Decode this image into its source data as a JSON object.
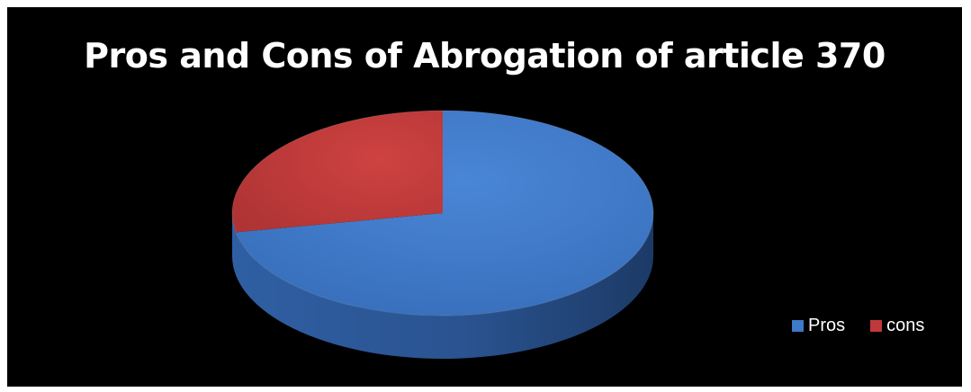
{
  "chart_data": {
    "type": "pie",
    "title": "Pros and Cons of Abrogation of article 370",
    "categories": [
      "Pros",
      "cons"
    ],
    "values": [
      72,
      28
    ],
    "colors": [
      "#3f79c7",
      "#c0393a"
    ],
    "side_colors": [
      "#274f8a",
      "#7d1f20"
    ],
    "background": "#000000",
    "three_d": true,
    "legend_position": "bottom-right"
  }
}
